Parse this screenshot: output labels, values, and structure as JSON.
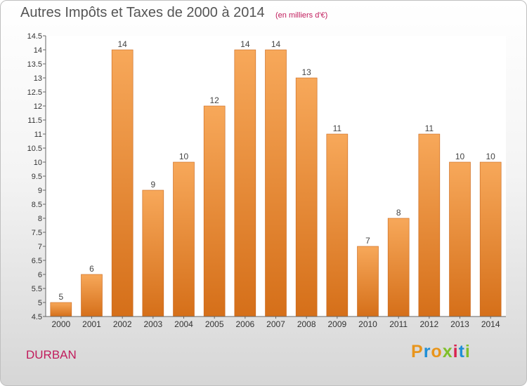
{
  "header": {
    "title": "Autres Impôts et Taxes de 2000 à 2014",
    "unit": "(en milliers d'€)"
  },
  "footer": {
    "city": "DURBAN",
    "logo_letters": [
      "P",
      "r",
      "o",
      "x",
      "i",
      "t",
      "i"
    ],
    "logo_colors": [
      "#e8951c",
      "#1f8fd6",
      "#e8951c",
      "#7fbf2a",
      "#d8224f",
      "#1f8fd6",
      "#7fbf2a"
    ]
  },
  "chart_data": {
    "type": "bar",
    "categories": [
      "2000",
      "2001",
      "2002",
      "2003",
      "2004",
      "2005",
      "2006",
      "2007",
      "2008",
      "2009",
      "2010",
      "2011",
      "2012",
      "2013",
      "2014"
    ],
    "values": [
      5,
      6,
      14,
      9,
      10,
      12,
      14,
      14,
      13,
      11,
      7,
      8,
      11,
      10,
      10
    ],
    "data_labels": [
      "5",
      "6",
      "14",
      "9",
      "10",
      "12",
      "14",
      "14",
      "13",
      "11",
      "7",
      "8",
      "11",
      "10",
      "10"
    ],
    "y_ticks": [
      "4.5",
      "5",
      "5.5",
      "6",
      "6.5",
      "7",
      "7.5",
      "8",
      "8.5",
      "9",
      "9.5",
      "10",
      "10.5",
      "11",
      "11.5",
      "12",
      "12.5",
      "13",
      "13.5",
      "14",
      "14.5"
    ],
    "ylim": [
      4.5,
      14.5
    ],
    "grid": false,
    "bar_color": "#f0913a",
    "bar_color_light": "#f7a85a",
    "bar_color_dark": "#d56f19"
  }
}
